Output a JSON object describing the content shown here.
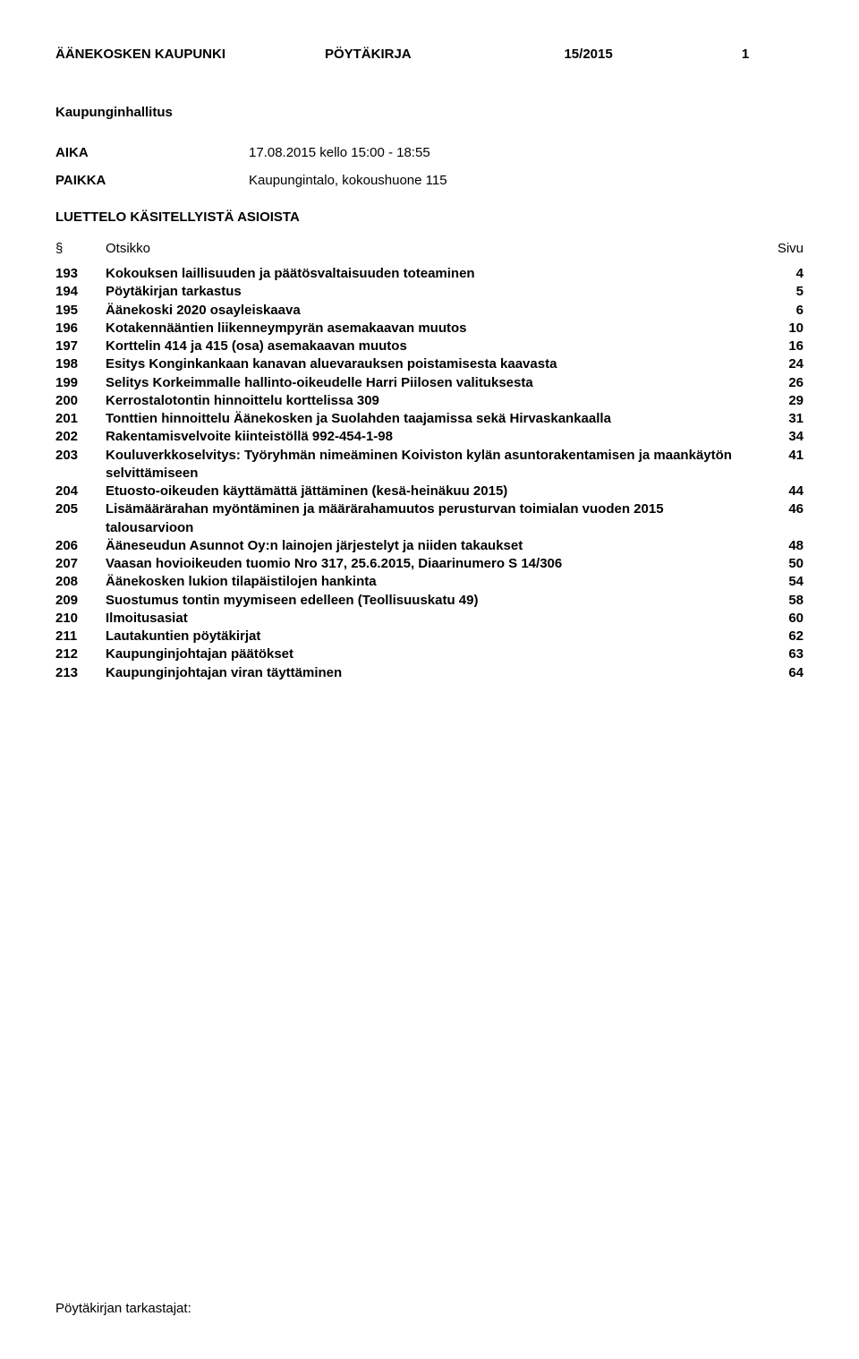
{
  "header": {
    "municipality": "ÄÄNEKOSKEN KAUPUNKI",
    "doc_type": "PÖYTÄKIRJA",
    "meeting_no": "15/2015",
    "page_no": "1"
  },
  "org_title": "Kaupunginhallitus",
  "meta": {
    "aika_label": "AIKA",
    "aika_value": "17.08.2015 kello 15:00 - 18:55",
    "paikka_label": "PAIKKA",
    "paikka_value": "Kaupungintalo, kokoushuone 115"
  },
  "luettelo_title": "LUETTELO KÄSITELLYISTÄ ASIOISTA",
  "toc_header": {
    "section": "§",
    "title": "Otsikko",
    "page": "Sivu"
  },
  "toc": [
    {
      "num": "193",
      "title": "Kokouksen laillisuuden ja päätösvaltaisuuden toteaminen",
      "page": "4"
    },
    {
      "num": "194",
      "title": "Pöytäkirjan tarkastus",
      "page": "5"
    },
    {
      "num": "195",
      "title": "Äänekoski 2020 osayleiskaava",
      "page": "6"
    },
    {
      "num": "196",
      "title": "Kotakennääntien liikenneympyrän asemakaavan muutos",
      "page": "10"
    },
    {
      "num": "197",
      "title": "Korttelin 414 ja 415 (osa) asemakaavan muutos",
      "page": "16"
    },
    {
      "num": "198",
      "title": "Esitys Konginkankaan kanavan aluevarauksen poistamisesta kaavasta",
      "page": "24"
    },
    {
      "num": "199",
      "title": "Selitys Korkeimmalle hallinto-oikeudelle Harri Piilosen valituksesta",
      "page": "26"
    },
    {
      "num": "200",
      "title": "Kerrostalotontin hinnoittelu korttelissa 309",
      "page": "29"
    },
    {
      "num": "201",
      "title": "Tonttien hinnoittelu Äänekosken ja Suolahden taajamissa sekä Hirvaskankaalla",
      "page": "31"
    },
    {
      "num": "202",
      "title": "Rakentamisvelvoite kiinteistöllä 992-454-1-98",
      "page": "34"
    },
    {
      "num": "203",
      "title": "Kouluverkkoselvitys: Työryhmän nimeäminen Koiviston kylän asuntorakentamisen ja maankäytön selvittämiseen",
      "page": "41"
    },
    {
      "num": "204",
      "title": "Etuosto-oikeuden käyttämättä jättäminen (kesä-heinäkuu 2015)",
      "page": "44"
    },
    {
      "num": "205",
      "title": "Lisämäärärahan myöntäminen ja määrärahamuutos perusturvan toimialan vuoden 2015 talousarvioon",
      "page": "46"
    },
    {
      "num": "206",
      "title": "Ääneseudun Asunnot Oy:n lainojen järjestelyt ja niiden takaukset",
      "page": "48"
    },
    {
      "num": "207",
      "title": "Vaasan hovioikeuden tuomio Nro 317, 25.6.2015, Diaarinumero S 14/306",
      "page": "50"
    },
    {
      "num": "208",
      "title": "Äänekosken lukion tilapäistilojen hankinta",
      "page": "54"
    },
    {
      "num": "209",
      "title": "Suostumus tontin myymiseen edelleen (Teollisuuskatu 49)",
      "page": "58"
    },
    {
      "num": "210",
      "title": "Ilmoitusasiat",
      "page": "60"
    },
    {
      "num": "211",
      "title": "Lautakuntien pöytäkirjat",
      "page": "62"
    },
    {
      "num": "212",
      "title": "Kaupunginjohtajan päätökset",
      "page": "63"
    },
    {
      "num": "213",
      "title": "Kaupunginjohtajan viran täyttäminen",
      "page": "64"
    }
  ],
  "footer": "Pöytäkirjan tarkastajat:"
}
